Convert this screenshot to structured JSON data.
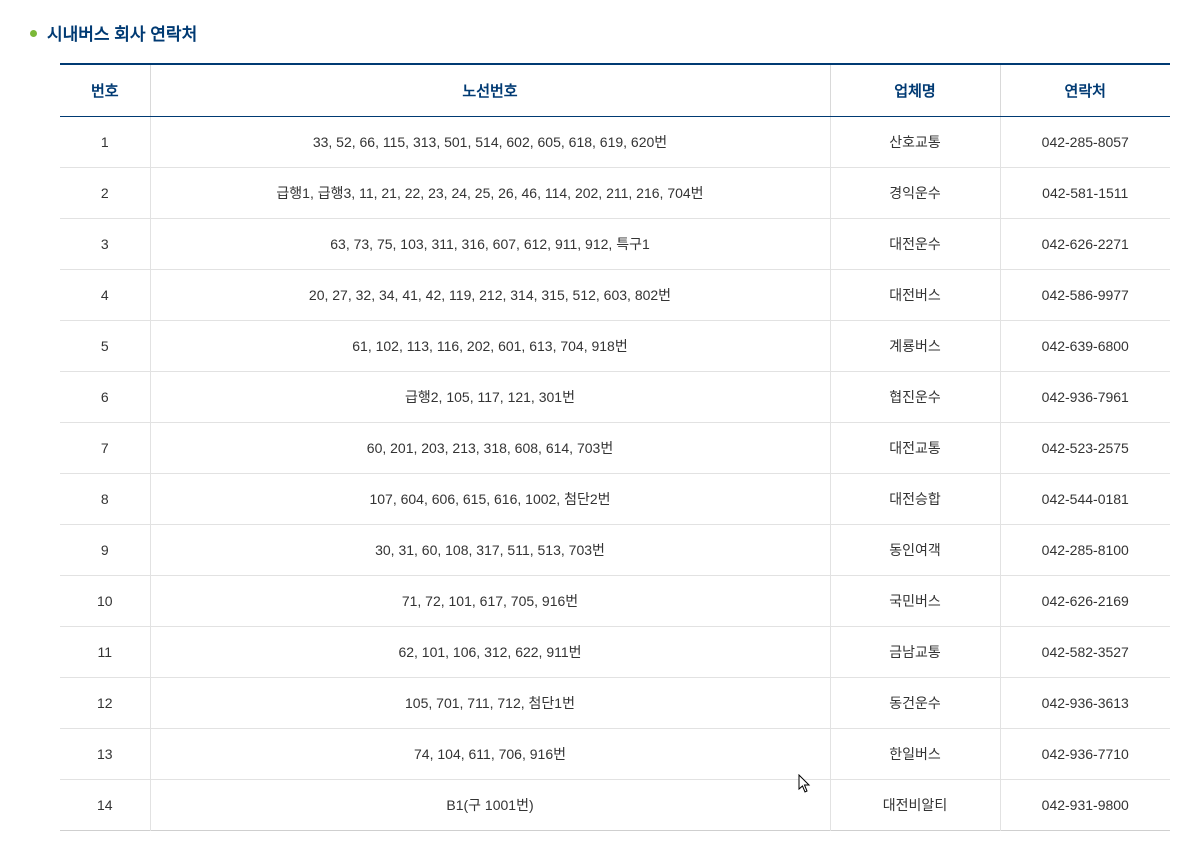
{
  "title": "시내버스 회사 연락처",
  "table": {
    "columns": [
      "번호",
      "노선번호",
      "업체명",
      "연락처"
    ],
    "rows": [
      [
        "1",
        "33, 52, 66, 115, 313, 501, 514, 602, 605, 618, 619, 620번",
        "산호교통",
        "042-285-8057"
      ],
      [
        "2",
        "급행1, 급행3, 11, 21, 22, 23, 24, 25, 26, 46, 114, 202, 211, 216, 704번",
        "경익운수",
        "042-581-1511"
      ],
      [
        "3",
        "63, 73, 75, 103, 311, 316, 607, 612, 911, 912, 특구1",
        "대전운수",
        "042-626-2271"
      ],
      [
        "4",
        "20, 27, 32, 34, 41, 42, 119, 212, 314, 315, 512, 603, 802번",
        "대전버스",
        "042-586-9977"
      ],
      [
        "5",
        "61, 102, 113, 116, 202, 601, 613, 704, 918번",
        "계룡버스",
        "042-639-6800"
      ],
      [
        "6",
        "급행2, 105, 117, 121, 301번",
        "협진운수",
        "042-936-7961"
      ],
      [
        "7",
        "60, 201, 203, 213, 318, 608, 614, 703번",
        "대전교통",
        "042-523-2575"
      ],
      [
        "8",
        "107, 604, 606, 615, 616, 1002, 첨단2번",
        "대전승합",
        "042-544-0181"
      ],
      [
        "9",
        "30, 31, 60, 108, 317, 511, 513, 703번",
        "동인여객",
        "042-285-8100"
      ],
      [
        "10",
        "71, 72, 101, 617, 705, 916번",
        "국민버스",
        "042-626-2169"
      ],
      [
        "11",
        "62, 101, 106, 312, 622, 911번",
        "금남교통",
        "042-582-3527"
      ],
      [
        "12",
        "105, 701, 711, 712, 첨단1번",
        "동건운수",
        "042-936-3613"
      ],
      [
        "13",
        "74, 104, 611, 706, 916번",
        "한일버스",
        "042-936-7710"
      ],
      [
        "14",
        "B1(구 1001번)",
        "대전비알티",
        "042-931-9800"
      ]
    ]
  }
}
